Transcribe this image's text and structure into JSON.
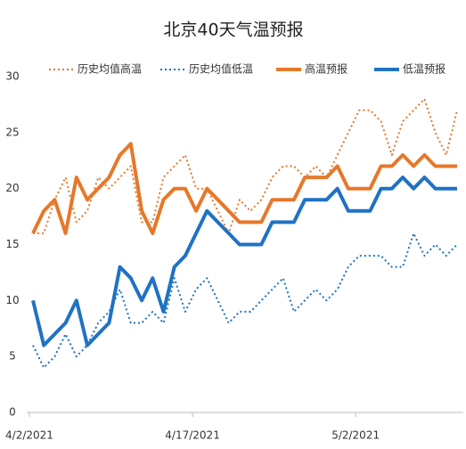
{
  "chart_data": {
    "type": "line",
    "title": "北京40天气温预报",
    "categories": [
      "4/2/2021",
      null,
      null,
      null,
      null,
      null,
      null,
      null,
      null,
      null,
      null,
      null,
      null,
      null,
      null,
      "4/17/2021",
      null,
      null,
      null,
      null,
      null,
      null,
      null,
      null,
      null,
      null,
      null,
      null,
      null,
      null,
      "5/2/2021",
      null,
      null,
      null,
      null,
      null,
      null,
      null,
      null,
      null
    ],
    "series": [
      {
        "name": "历史均值高温",
        "color": "#e6782a",
        "dashed": true,
        "values": [
          16,
          16,
          19,
          21,
          17,
          18,
          21,
          20,
          21,
          22,
          17,
          17,
          21,
          22,
          23,
          20,
          20,
          18,
          16,
          19,
          18,
          19,
          21,
          22,
          22,
          21,
          22,
          21,
          23,
          25,
          27,
          27,
          26,
          23,
          26,
          27,
          28,
          25,
          23,
          27
        ]
      },
      {
        "name": "历史均值低温",
        "color": "#1f72c4",
        "dashed": true,
        "values": [
          6,
          4,
          5,
          7,
          5,
          6,
          8,
          9,
          11,
          8,
          8,
          9,
          8,
          12,
          9,
          11,
          12,
          10,
          8,
          9,
          9,
          10,
          11,
          12,
          9,
          10,
          11,
          10,
          11,
          13,
          14,
          14,
          14,
          13,
          13,
          16,
          14,
          15,
          14,
          15
        ]
      },
      {
        "name": "高温预报",
        "color": "#e6782a",
        "dashed": false,
        "values": [
          16,
          18,
          19,
          16,
          21,
          19,
          20,
          21,
          23,
          24,
          18,
          16,
          19,
          20,
          20,
          18,
          20,
          19,
          18,
          17,
          17,
          17,
          19,
          19,
          19,
          21,
          21,
          21,
          22,
          20,
          20,
          20,
          22,
          22,
          23,
          22,
          23,
          22,
          22,
          22
        ]
      },
      {
        "name": "低温预报",
        "color": "#1f72c4",
        "dashed": false,
        "values": [
          10,
          6,
          7,
          8,
          10,
          6,
          7,
          8,
          13,
          12,
          10,
          12,
          9,
          13,
          14,
          16,
          18,
          17,
          16,
          15,
          15,
          15,
          17,
          17,
          17,
          19,
          19,
          19,
          20,
          18,
          18,
          18,
          20,
          20,
          21,
          20,
          21,
          20,
          20,
          20
        ]
      }
    ],
    "ylim": [
      0,
      30
    ],
    "yticks": [
      0,
      5,
      10,
      15,
      20,
      25,
      30
    ],
    "grid": false
  }
}
